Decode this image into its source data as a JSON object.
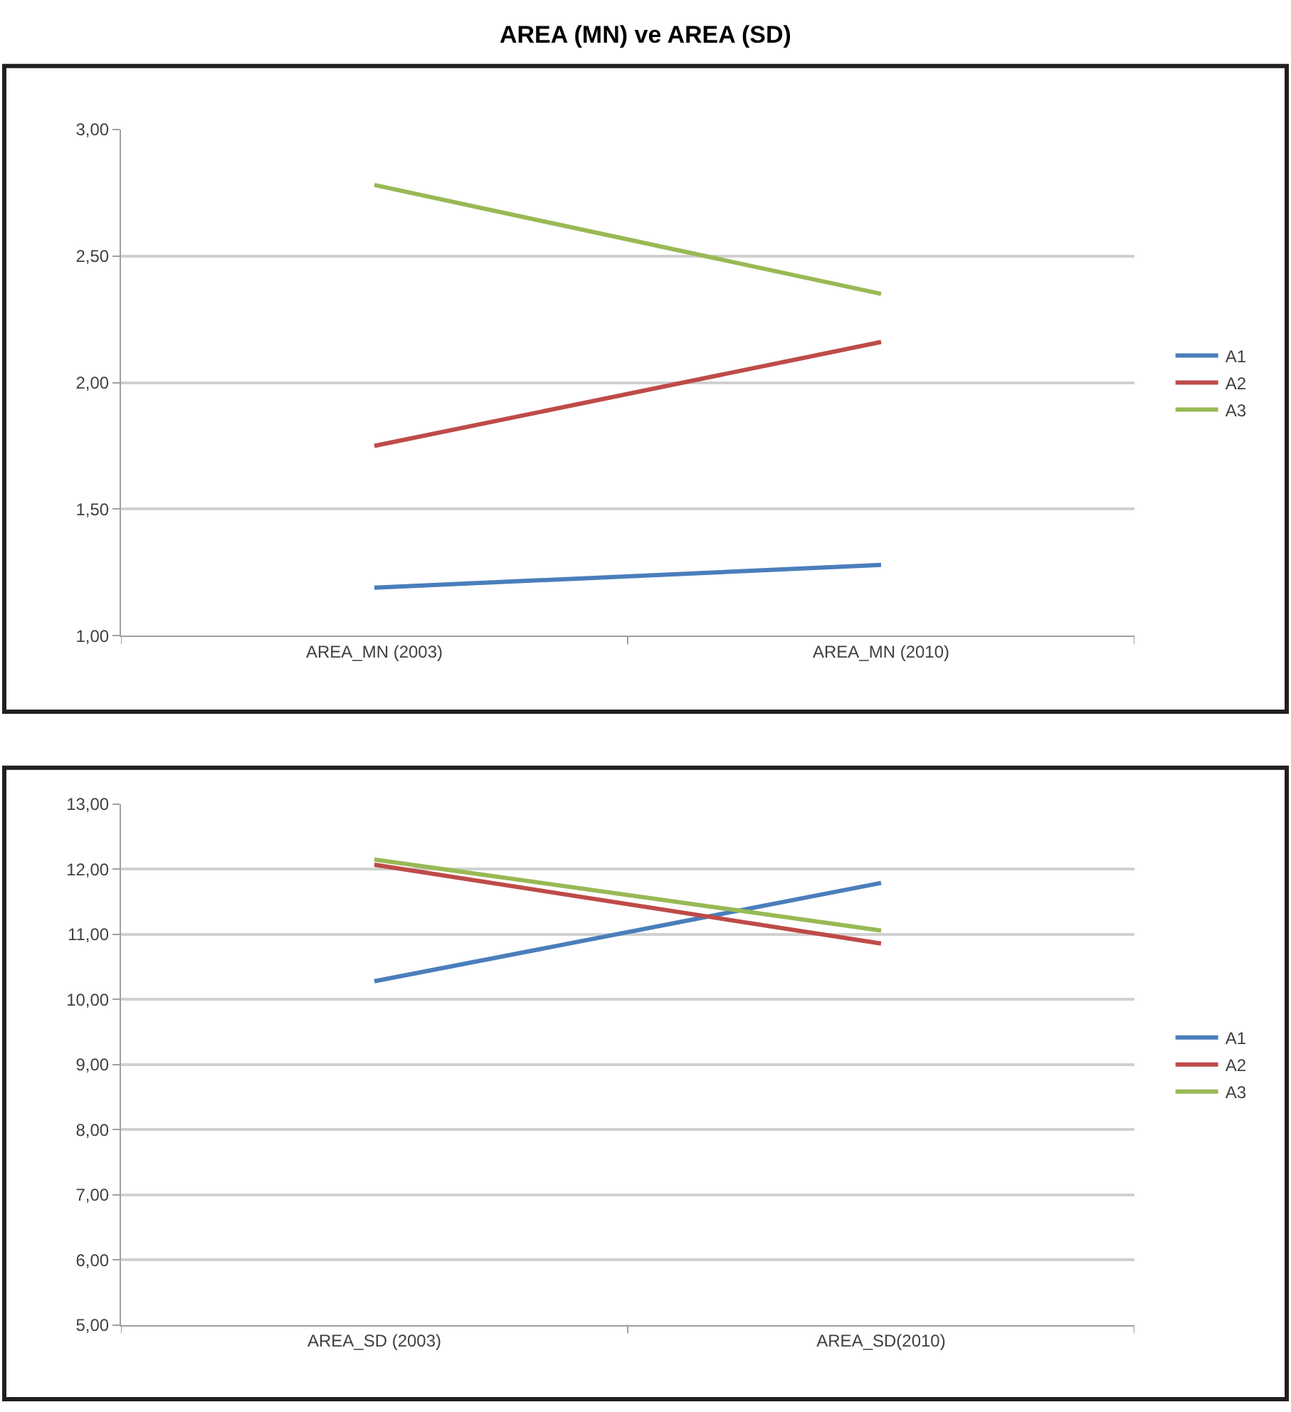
{
  "chart_data": [
    {
      "type": "line",
      "title": "AREA (MN) ve AREA (SD)",
      "categories": [
        "AREA_MN (2003)",
        "AREA_MN (2010)"
      ],
      "series": [
        {
          "name": "A1",
          "color": "#4a7ebb",
          "values": [
            1.19,
            1.28
          ]
        },
        {
          "name": "A2",
          "color": "#be4b48",
          "values": [
            1.75,
            2.16
          ]
        },
        {
          "name": "A3",
          "color": "#98b954",
          "values": [
            2.78,
            2.35
          ]
        }
      ],
      "ylim": [
        1,
        3
      ],
      "yticks": [
        {
          "value": 1,
          "label": "1,00"
        },
        {
          "value": 1.5,
          "label": "1,50"
        },
        {
          "value": 2,
          "label": "2,00"
        },
        {
          "value": 2.5,
          "label": "2,50"
        },
        {
          "value": 3,
          "label": "3,00"
        }
      ],
      "grid": "y",
      "legend": "right",
      "marker": "none",
      "line_style": "solid"
    },
    {
      "type": "line",
      "categories": [
        "AREA_SD (2003)",
        "AREA_SD(2010)"
      ],
      "series": [
        {
          "name": "A1",
          "color": "#4a7ebb",
          "values": [
            10.28,
            11.79
          ]
        },
        {
          "name": "A2",
          "color": "#be4b48",
          "values": [
            12.07,
            10.86
          ]
        },
        {
          "name": "A3",
          "color": "#98b954",
          "values": [
            12.15,
            11.06
          ]
        }
      ],
      "ylim": [
        5,
        13
      ],
      "yticks": [
        {
          "value": 5,
          "label": "5,00"
        },
        {
          "value": 6,
          "label": "6,00"
        },
        {
          "value": 7,
          "label": "7,00"
        },
        {
          "value": 8,
          "label": "8,00"
        },
        {
          "value": 9,
          "label": "9,00"
        },
        {
          "value": 10,
          "label": "10,00"
        },
        {
          "value": 11,
          "label": "11,00"
        },
        {
          "value": 12,
          "label": "12,00"
        },
        {
          "value": 13,
          "label": "13,00"
        }
      ],
      "grid": "y",
      "legend": "right",
      "marker": "none",
      "line_style": "solid"
    }
  ]
}
